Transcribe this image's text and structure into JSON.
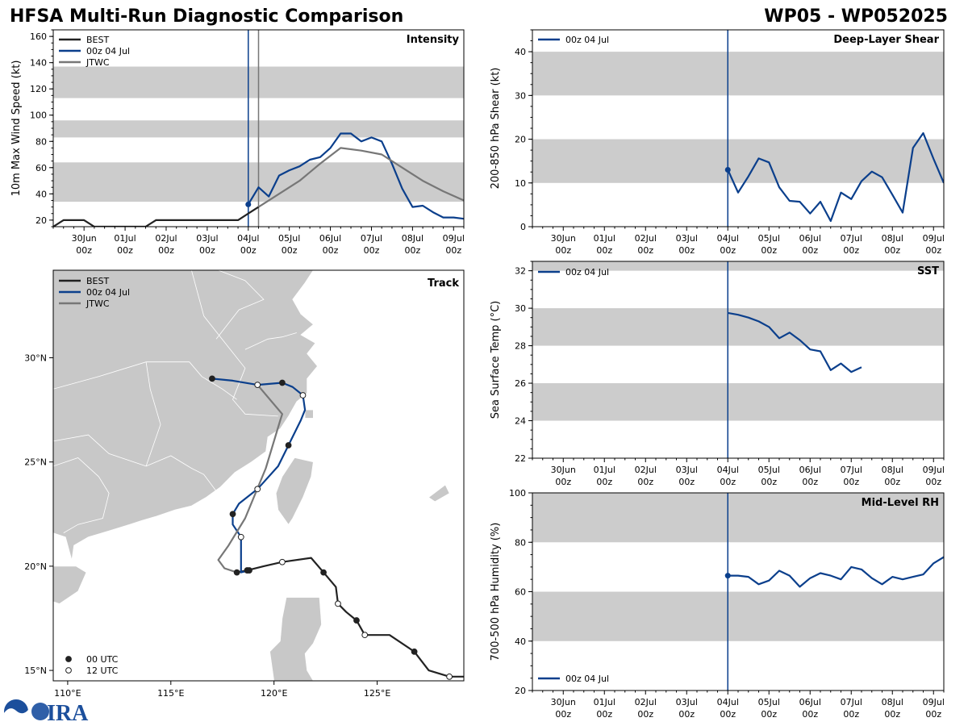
{
  "header": {
    "title": "HFSA Multi-Run Diagnostic Comparison",
    "storm_id": "WP05 - WP052025"
  },
  "colors": {
    "best": "#222222",
    "run": "#0b3f8c",
    "jtwc": "#777777",
    "band": "#cccccc",
    "land": "#c8c8c8",
    "border": "#ffffff"
  },
  "time_axis": {
    "tick_labels": [
      [
        "30Jun",
        "00z"
      ],
      [
        "01Jul",
        "00z"
      ],
      [
        "02Jul",
        "00z"
      ],
      [
        "03Jul",
        "00z"
      ],
      [
        "04Jul",
        "00z"
      ],
      [
        "05Jul",
        "00z"
      ],
      [
        "06Jul",
        "00z"
      ],
      [
        "07Jul",
        "00z"
      ],
      [
        "08Jul",
        "00z"
      ],
      [
        "09Jul",
        "00z"
      ]
    ]
  },
  "chart_data": [
    {
      "id": "intensity",
      "type": "line",
      "title": "Intensity",
      "ylabel": "10m Max Wind Speed (kt)",
      "xlabel": "",
      "xlim": [
        -0.75,
        9.25
      ],
      "ylim": [
        15,
        165
      ],
      "yticks": [
        20,
        40,
        60,
        80,
        100,
        120,
        140,
        160
      ],
      "bands": [
        [
          34,
          64
        ],
        [
          83,
          96
        ],
        [
          113,
          137
        ]
      ],
      "init_lines": [
        {
          "x": 4.0,
          "color": "run"
        },
        {
          "x": 4.25,
          "color": "jtwc"
        }
      ],
      "legend": "top-left",
      "series": [
        {
          "name": "BEST",
          "color": "best",
          "x": [
            -0.75,
            -0.5,
            -0.25,
            0,
            0.25,
            0.5,
            0.75,
            1,
            1.25,
            1.5,
            1.75,
            2,
            2.25,
            2.5,
            2.75,
            3,
            3.25,
            3.5,
            3.75,
            4,
            4.25
          ],
          "y": [
            15,
            20,
            20,
            20,
            15,
            15,
            15,
            15,
            15,
            15,
            20,
            20,
            20,
            20,
            20,
            20,
            20,
            20,
            20,
            25,
            30
          ]
        },
        {
          "name": "00z 04 Jul",
          "color": "run",
          "start_marker": true,
          "x": [
            4,
            4.25,
            4.5,
            4.75,
            5,
            5.25,
            5.5,
            5.75,
            6,
            6.25,
            6.5,
            6.75,
            7,
            7.25,
            7.5,
            7.75,
            8,
            8.25,
            8.5,
            8.75,
            9,
            9.25
          ],
          "y": [
            32,
            45,
            38,
            54,
            58,
            61,
            66,
            68,
            75,
            86,
            86,
            80,
            83,
            80,
            63,
            44,
            30,
            31,
            26,
            22,
            22,
            21
          ]
        },
        {
          "name": "JTWC",
          "color": "jtwc",
          "x": [
            4.25,
            4.75,
            5.25,
            5.75,
            6.25,
            6.75,
            7.25,
            7.75,
            8.25,
            8.75,
            9.25
          ],
          "y": [
            30,
            40,
            50,
            63,
            75,
            73,
            70,
            60,
            50,
            42,
            35
          ]
        }
      ]
    },
    {
      "id": "shear",
      "type": "line",
      "title": "Deep-Layer Shear",
      "ylabel": "200-850 hPa Shear (kt)",
      "xlabel": "",
      "xlim": [
        -0.75,
        9.25
      ],
      "ylim": [
        0,
        45
      ],
      "yticks": [
        0,
        10,
        20,
        30,
        40
      ],
      "bands": [
        [
          10,
          20
        ],
        [
          30,
          40
        ]
      ],
      "init_lines": [
        {
          "x": 4.0,
          "color": "run"
        }
      ],
      "legend": "top-left",
      "series": [
        {
          "name": "00z 04 Jul",
          "color": "run",
          "start_marker": true,
          "x": [
            4,
            4.25,
            4.5,
            4.75,
            5,
            5.25,
            5.5,
            5.75,
            6,
            6.25,
            6.5,
            6.75,
            7,
            7.25,
            7.5,
            7.75,
            8,
            8.25,
            8.5,
            8.75,
            9,
            9.25
          ],
          "y": [
            13,
            7.8,
            11.5,
            15.6,
            14.7,
            9,
            5.9,
            5.7,
            3,
            5.7,
            1.3,
            7.8,
            6.3,
            10.4,
            12.6,
            11.3,
            7.3,
            3.2,
            18,
            21.4,
            15.5,
            10
          ]
        }
      ]
    },
    {
      "id": "track",
      "type": "line",
      "title": "Track",
      "xlim": [
        109.3,
        129.2
      ],
      "ylim": [
        14.5,
        34.2
      ],
      "xticks": [
        110,
        115,
        120,
        125
      ],
      "xtick_labels": [
        "110°E",
        "115°E",
        "120°E",
        "125°E"
      ],
      "yticks": [
        15,
        20,
        25,
        30
      ],
      "ytick_labels": [
        "15°N",
        "20°N",
        "25°N",
        "30°N"
      ],
      "legend": "top-left",
      "marker_legend": [
        "00 UTC",
        "12 UTC"
      ],
      "series": [
        {
          "name": "BEST",
          "color": "best",
          "lon": [
            129.2,
            128.5,
            127.5,
            126.8,
            125.6,
            124.4,
            124,
            123.5,
            123.1,
            123,
            122.4,
            121.8,
            120.4,
            119.5,
            118.7,
            118.2
          ],
          "lat": [
            14.7,
            14.7,
            15,
            15.9,
            16.7,
            16.7,
            17.4,
            17.8,
            18.2,
            19,
            19.7,
            20.4,
            20.2,
            20,
            19.8,
            19.7
          ],
          "markers": [
            {
              "lon": 128.5,
              "lat": 14.7,
              "type": "open"
            },
            {
              "lon": 126.8,
              "lat": 15.9,
              "type": "filled"
            },
            {
              "lon": 124.4,
              "lat": 16.7,
              "type": "open"
            },
            {
              "lon": 124.0,
              "lat": 17.4,
              "type": "filled"
            },
            {
              "lon": 123.1,
              "lat": 18.2,
              "type": "open"
            },
            {
              "lon": 122.4,
              "lat": 19.7,
              "type": "filled"
            },
            {
              "lon": 120.4,
              "lat": 20.2,
              "type": "open"
            },
            {
              "lon": 118.7,
              "lat": 19.8,
              "type": "filled"
            }
          ]
        },
        {
          "name": "00z 04 Jul",
          "color": "run",
          "lon": [
            118.8,
            118.4,
            118.4,
            118,
            118,
            118.3,
            119.2,
            120.2,
            120.7,
            121.3,
            121.5,
            121.4,
            120.9,
            120.4,
            119.2,
            118,
            117
          ],
          "lat": [
            19.8,
            19.7,
            21.4,
            22,
            22.5,
            23,
            23.7,
            24.8,
            25.8,
            27,
            27.5,
            28.2,
            28.6,
            28.8,
            28.7,
            28.9,
            29
          ],
          "markers": [
            {
              "lon": 118.8,
              "lat": 19.8,
              "type": "filled"
            },
            {
              "lon": 118.4,
              "lat": 21.4,
              "type": "open"
            },
            {
              "lon": 118.0,
              "lat": 22.5,
              "type": "filled"
            },
            {
              "lon": 119.2,
              "lat": 23.7,
              "type": "open"
            },
            {
              "lon": 120.7,
              "lat": 25.8,
              "type": "filled"
            },
            {
              "lon": 121.4,
              "lat": 28.2,
              "type": "open"
            },
            {
              "lon": 120.4,
              "lat": 28.8,
              "type": "filled"
            },
            {
              "lon": 119.2,
              "lat": 28.7,
              "type": "open"
            },
            {
              "lon": 117.0,
              "lat": 29.0,
              "type": "filled"
            }
          ]
        },
        {
          "name": "JTWC",
          "color": "jtwc",
          "lon": [
            118.2,
            117.6,
            117.3,
            117.8,
            118.6,
            119.6,
            120.3,
            120.4,
            119.2
          ],
          "lat": [
            19.7,
            19.9,
            20.3,
            21,
            22.3,
            24.7,
            27,
            27.3,
            28.7
          ],
          "markers": [
            {
              "lon": 118.2,
              "lat": 19.7,
              "type": "filled"
            }
          ]
        }
      ]
    },
    {
      "id": "sst",
      "type": "line",
      "title": "SST",
      "ylabel": "Sea Surface Temp (°C)",
      "xlabel": "",
      "xlim": [
        -0.75,
        9.25
      ],
      "ylim": [
        22,
        32.5
      ],
      "yticks": [
        22,
        24,
        26,
        28,
        30,
        32
      ],
      "bands": [
        [
          24,
          26
        ],
        [
          28,
          30
        ],
        [
          32,
          32.5
        ]
      ],
      "init_lines": [
        {
          "x": 4.0,
          "color": "run"
        }
      ],
      "legend": "top-left",
      "series": [
        {
          "name": "00z 04 Jul",
          "color": "run",
          "x": [
            4,
            4.25,
            4.5,
            4.75,
            5,
            5.25,
            5.5,
            5.75,
            6,
            6.25,
            6.5,
            6.75,
            7,
            7.25
          ],
          "y": [
            29.75,
            29.65,
            29.5,
            29.3,
            29,
            28.4,
            28.7,
            28.3,
            27.8,
            27.7,
            26.7,
            27.05,
            26.6,
            26.85
          ]
        }
      ]
    },
    {
      "id": "rh",
      "type": "line",
      "title": "Mid-Level RH",
      "ylabel": "700-500 hPa Humidity (%)",
      "xlabel": "",
      "xlim": [
        -0.75,
        9.25
      ],
      "ylim": [
        20,
        100
      ],
      "yticks": [
        20,
        40,
        60,
        80,
        100
      ],
      "bands": [
        [
          40,
          60
        ],
        [
          80,
          100
        ]
      ],
      "init_lines": [
        {
          "x": 4.0,
          "color": "run"
        }
      ],
      "legend": "bottom-left",
      "series": [
        {
          "name": "00z 04 Jul",
          "color": "run",
          "start_marker": true,
          "x": [
            4,
            4.25,
            4.5,
            4.75,
            5,
            5.25,
            5.5,
            5.75,
            6,
            6.25,
            6.5,
            6.75,
            7,
            7.25,
            7.5,
            7.75,
            8,
            8.25,
            8.5,
            8.75,
            9,
            9.25
          ],
          "y": [
            66.5,
            66.5,
            66,
            63,
            64.5,
            68.5,
            66.5,
            62,
            65.5,
            67.5,
            66.5,
            65,
            70,
            69,
            65.5,
            63,
            66,
            65,
            66,
            67,
            71.5,
            74
          ]
        }
      ]
    }
  ]
}
